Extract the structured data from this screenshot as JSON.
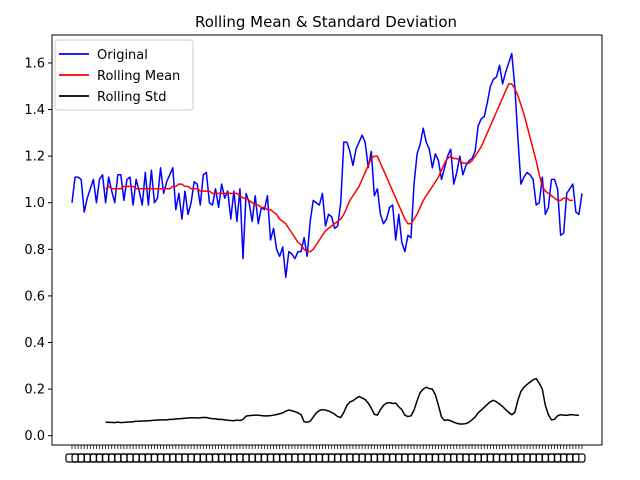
{
  "chart_data": {
    "type": "line",
    "title": "Rolling Mean & Standard Deviation",
    "xlabel": "",
    "ylabel": "",
    "ylim": [
      -0.04,
      1.72
    ],
    "yticks": [
      0.0,
      0.2,
      0.4,
      0.6,
      0.8,
      1.0,
      1.2,
      1.4,
      1.6
    ],
    "ytick_labels": [
      "0.0",
      "0.2",
      "0.4",
      "0.6",
      "0.8",
      "1.0",
      "1.2",
      "1.4",
      "1.6"
    ],
    "x_tick_note": "dense overlapping date tick labels along the x-axis (unreadable)",
    "grid": false,
    "legend_position": "top-left",
    "series": [
      {
        "name": "Original",
        "color": "#0000ff",
        "values": [
          1.0,
          1.11,
          1.11,
          1.1,
          0.96,
          1.02,
          1.06,
          1.1,
          1.0,
          1.1,
          1.12,
          1.0,
          1.11,
          1.05,
          1.0,
          1.12,
          1.12,
          1.01,
          1.1,
          1.11,
          0.99,
          1.1,
          1.05,
          0.99,
          1.13,
          0.99,
          1.14,
          1.0,
          1.02,
          1.15,
          1.04,
          1.09,
          1.12,
          1.15,
          0.97,
          1.04,
          0.93,
          1.05,
          0.95,
          1.0,
          1.09,
          1.08,
          0.99,
          1.12,
          1.13,
          1.0,
          0.99,
          1.06,
          0.98,
          1.08,
          1.02,
          1.05,
          0.93,
          1.05,
          0.92,
          1.06,
          0.76,
          1.04,
          1.0,
          0.92,
          1.03,
          0.91,
          0.98,
          0.97,
          1.03,
          0.84,
          0.89,
          0.8,
          0.77,
          0.81,
          0.68,
          0.79,
          0.78,
          0.76,
          0.79,
          0.79,
          0.85,
          0.77,
          0.92,
          1.01,
          1.0,
          0.99,
          1.04,
          0.9,
          0.95,
          0.94,
          0.89,
          0.9,
          1.0,
          1.26,
          1.26,
          1.22,
          1.16,
          1.23,
          1.26,
          1.29,
          1.26,
          1.15,
          1.22,
          1.03,
          1.06,
          0.95,
          0.91,
          0.93,
          0.98,
          0.99,
          0.84,
          0.95,
          0.83,
          0.79,
          0.86,
          0.85,
          1.08,
          1.21,
          1.25,
          1.32,
          1.26,
          1.23,
          1.15,
          1.21,
          1.18,
          1.1,
          1.15,
          1.2,
          1.23,
          1.08,
          1.13,
          1.2,
          1.12,
          1.16,
          1.18,
          1.19,
          1.22,
          1.33,
          1.36,
          1.37,
          1.43,
          1.5,
          1.53,
          1.54,
          1.59,
          1.51,
          1.56,
          1.6,
          1.64,
          1.5,
          1.28,
          1.08,
          1.11,
          1.13,
          1.12,
          1.1,
          0.99,
          1.0,
          1.11,
          0.95,
          0.98,
          1.1,
          1.1,
          1.06,
          0.86,
          0.87,
          1.04,
          1.06,
          1.08,
          0.96,
          0.95,
          1.04
        ]
      },
      {
        "name": "Rolling Mean",
        "color": "#ff0000",
        "values": [
          null,
          null,
          null,
          null,
          null,
          null,
          null,
          null,
          null,
          null,
          null,
          1.06,
          1.07,
          1.06,
          1.06,
          1.06,
          1.06,
          1.07,
          1.07,
          1.07,
          1.07,
          1.06,
          1.06,
          1.06,
          1.06,
          1.06,
          1.06,
          1.06,
          1.06,
          1.06,
          1.06,
          1.06,
          1.06,
          1.07,
          1.07,
          1.08,
          1.08,
          1.07,
          1.07,
          1.06,
          1.06,
          1.06,
          1.05,
          1.05,
          1.05,
          1.05,
          1.04,
          1.04,
          1.04,
          1.04,
          1.04,
          1.04,
          1.04,
          1.04,
          1.04,
          1.03,
          1.02,
          1.02,
          1.01,
          1.0,
          0.99,
          0.99,
          0.98,
          0.98,
          0.97,
          0.97,
          0.96,
          0.95,
          0.93,
          0.92,
          0.91,
          0.89,
          0.87,
          0.85,
          0.83,
          0.82,
          0.8,
          0.79,
          0.79,
          0.8,
          0.82,
          0.84,
          0.86,
          0.88,
          0.89,
          0.9,
          0.91,
          0.92,
          0.93,
          0.95,
          0.98,
          1.01,
          1.03,
          1.05,
          1.07,
          1.1,
          1.13,
          1.16,
          1.19,
          1.2,
          1.2,
          1.17,
          1.14,
          1.11,
          1.08,
          1.05,
          1.02,
          0.99,
          0.96,
          0.93,
          0.91,
          0.91,
          0.93,
          0.95,
          0.98,
          1.01,
          1.03,
          1.05,
          1.07,
          1.09,
          1.11,
          1.14,
          1.17,
          1.19,
          1.2,
          1.19,
          1.19,
          1.18,
          1.17,
          1.17,
          1.17,
          1.18,
          1.2,
          1.22,
          1.24,
          1.27,
          1.3,
          1.33,
          1.36,
          1.39,
          1.42,
          1.45,
          1.48,
          1.51,
          1.51,
          1.49,
          1.46,
          1.42,
          1.38,
          1.33,
          1.28,
          1.23,
          1.18,
          1.12,
          1.07,
          1.05,
          1.04,
          1.03,
          1.02,
          1.01,
          1.01,
          1.02,
          1.02,
          1.01,
          1.01
        ]
      },
      {
        "name": "Rolling Std",
        "color": "#000000",
        "values": [
          null,
          null,
          null,
          null,
          null,
          null,
          null,
          null,
          null,
          null,
          null,
          0.058,
          0.057,
          0.057,
          0.056,
          0.058,
          0.056,
          0.057,
          0.058,
          0.059,
          0.06,
          0.062,
          0.062,
          0.063,
          0.063,
          0.064,
          0.065,
          0.066,
          0.067,
          0.068,
          0.068,
          0.068,
          0.07,
          0.07,
          0.072,
          0.072,
          0.074,
          0.075,
          0.076,
          0.077,
          0.077,
          0.076,
          0.077,
          0.078,
          0.078,
          0.075,
          0.073,
          0.072,
          0.07,
          0.07,
          0.068,
          0.066,
          0.065,
          0.064,
          0.067,
          0.065,
          0.07,
          0.084,
          0.086,
          0.087,
          0.088,
          0.088,
          0.086,
          0.085,
          0.085,
          0.086,
          0.088,
          0.091,
          0.094,
          0.098,
          0.105,
          0.11,
          0.107,
          0.103,
          0.098,
          0.09,
          0.06,
          0.058,
          0.062,
          0.08,
          0.098,
          0.108,
          0.112,
          0.11,
          0.106,
          0.1,
          0.092,
          0.082,
          0.078,
          0.1,
          0.13,
          0.145,
          0.15,
          0.16,
          0.168,
          0.162,
          0.155,
          0.14,
          0.118,
          0.092,
          0.088,
          0.112,
          0.13,
          0.14,
          0.142,
          0.138,
          0.14,
          0.124,
          0.112,
          0.088,
          0.082,
          0.085,
          0.11,
          0.15,
          0.185,
          0.2,
          0.208,
          0.202,
          0.2,
          0.175,
          0.13,
          0.08,
          0.065,
          0.068,
          0.064,
          0.058,
          0.053,
          0.05,
          0.05,
          0.052,
          0.058,
          0.068,
          0.08,
          0.098,
          0.11,
          0.122,
          0.134,
          0.146,
          0.152,
          0.145,
          0.136,
          0.125,
          0.112,
          0.1,
          0.09,
          0.1,
          0.152,
          0.19,
          0.208,
          0.22,
          0.23,
          0.24,
          0.245,
          0.225,
          0.2,
          0.13,
          0.09,
          0.068,
          0.07,
          0.085,
          0.09,
          0.088,
          0.087,
          0.09,
          0.09,
          0.088,
          0.087
        ]
      }
    ]
  }
}
